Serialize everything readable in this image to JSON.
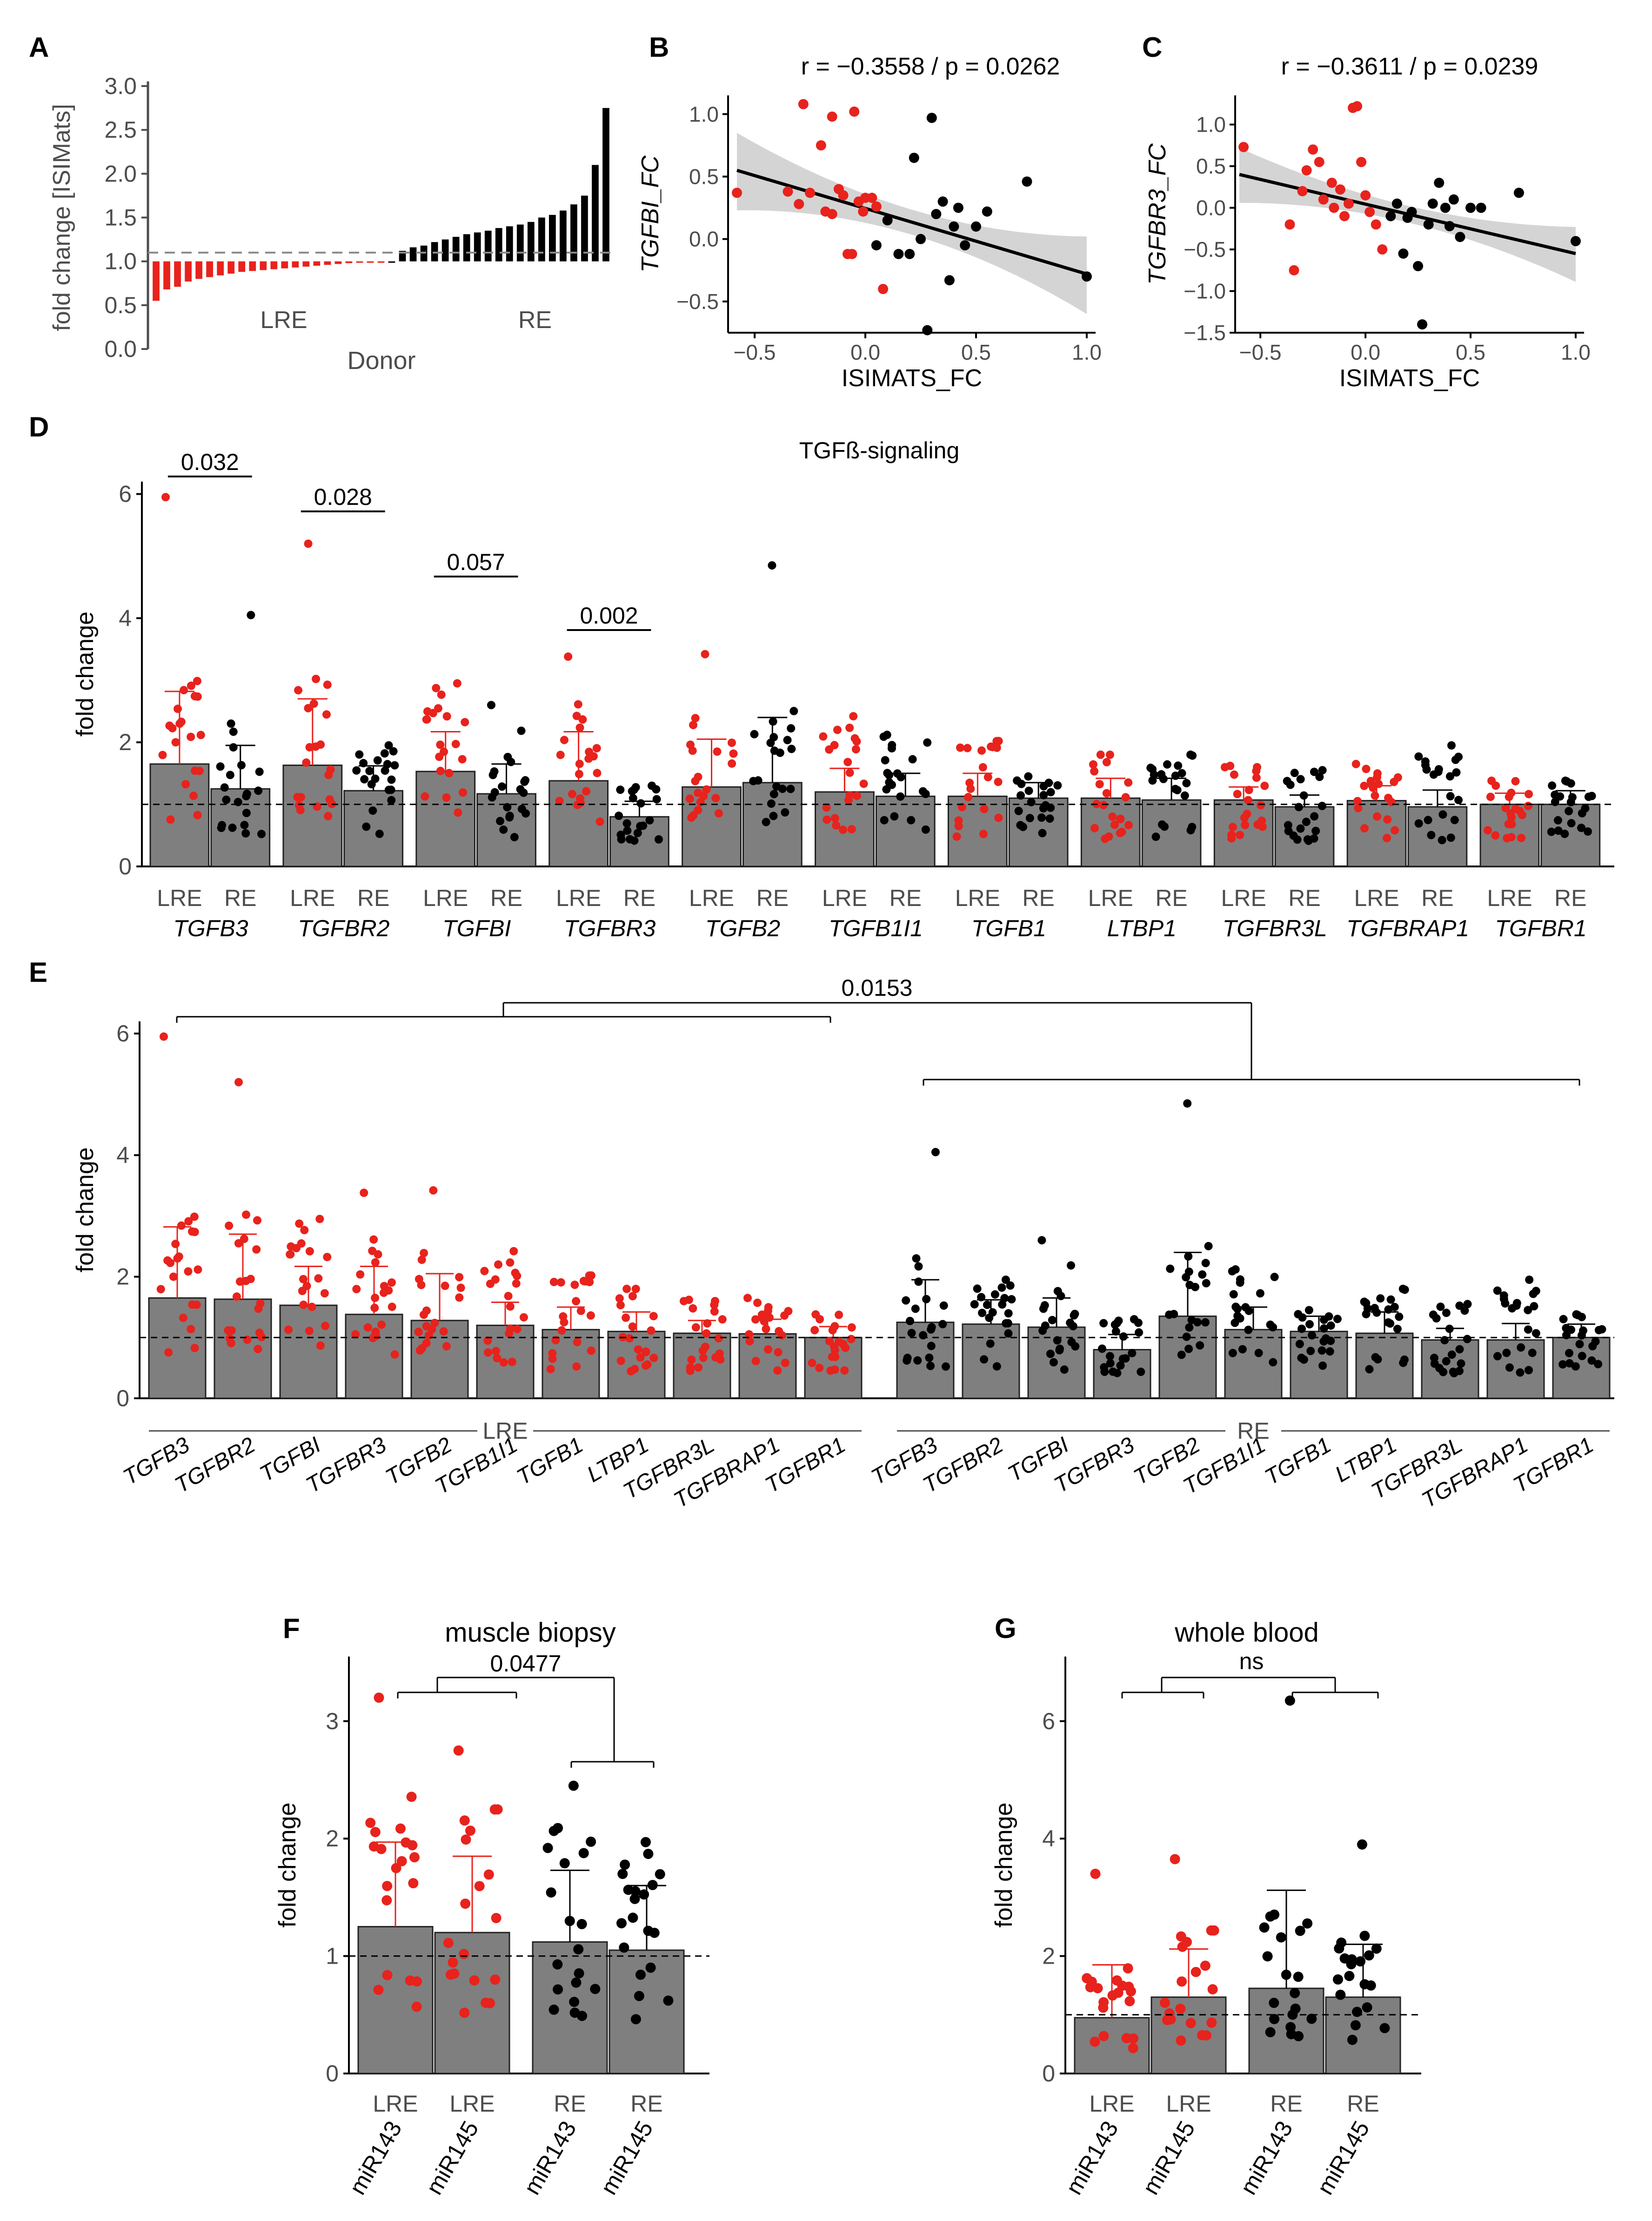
{
  "colors": {
    "lre": "#e8221c",
    "re": "#000000",
    "bar": "#7f7f7f",
    "ci": "#d4d4d4",
    "axis": "#4d4d4d"
  },
  "chart_data": [
    {
      "panel": "A",
      "type": "bar",
      "ylabel": "fold change [ISIMats]",
      "xlabel": "Donor",
      "group_labels": [
        "LRE",
        "RE"
      ],
      "yticks": [
        "0.0",
        "0.5",
        "1.0",
        "1.5",
        "2.0",
        "2.5",
        "3.0"
      ],
      "ylim": [
        0,
        3.0
      ],
      "reference_line": 1.1,
      "lre_values": [
        0.55,
        0.68,
        0.71,
        0.77,
        0.8,
        0.82,
        0.84,
        0.86,
        0.88,
        0.89,
        0.9,
        0.91,
        0.92,
        0.93,
        0.94,
        0.95,
        0.96,
        0.97,
        0.98,
        0.985,
        0.99,
        0.995
      ],
      "re_values": [
        1.0,
        1.12,
        1.16,
        1.18,
        1.22,
        1.25,
        1.28,
        1.31,
        1.33,
        1.35,
        1.38,
        1.4,
        1.42,
        1.45,
        1.5,
        1.53,
        1.58,
        1.65,
        1.75,
        2.1,
        2.75
      ]
    },
    {
      "panel": "B",
      "type": "scatter",
      "title": "r = −0.3558 / p = 0.0262",
      "ylabel": "TGFBI_FC",
      "xlabel": "ISIMATS_FC",
      "xticks": [
        "−0.5",
        "0.0",
        "0.5",
        "1.0"
      ],
      "yticks": [
        "−0.5",
        "0.0",
        "0.5",
        "1.0"
      ],
      "xlim": [
        -0.62,
        1.04
      ],
      "ylim": [
        -0.75,
        1.15
      ],
      "fit": {
        "x": [
          -0.58,
          1.0
        ],
        "y": [
          0.55,
          -0.28
        ]
      },
      "band_halfwidth_ends": [
        0.3,
        0.32
      ],
      "band_halfwidth_center": 0.1,
      "lre_points": [
        [
          -0.58,
          0.37
        ],
        [
          -0.35,
          0.38
        ],
        [
          -0.28,
          1.08
        ],
        [
          -0.25,
          0.37
        ],
        [
          -0.2,
          0.75
        ],
        [
          -0.18,
          0.22
        ],
        [
          -0.15,
          0.98
        ],
        [
          -0.12,
          0.4
        ],
        [
          -0.1,
          0.35
        ],
        [
          -0.08,
          -0.12
        ],
        [
          -0.06,
          -0.12
        ],
        [
          -0.05,
          1.02
        ],
        [
          -0.03,
          0.3
        ],
        [
          -0.01,
          0.22
        ],
        [
          0.0,
          0.33
        ],
        [
          0.03,
          0.33
        ],
        [
          0.05,
          0.26
        ],
        [
          0.08,
          -0.4
        ],
        [
          -0.15,
          0.2
        ],
        [
          -0.3,
          0.28
        ]
      ],
      "re_points": [
        [
          0.05,
          -0.05
        ],
        [
          0.1,
          0.15
        ],
        [
          0.15,
          -0.12
        ],
        [
          0.2,
          -0.12
        ],
        [
          0.22,
          0.65
        ],
        [
          0.25,
          0.0
        ],
        [
          0.28,
          -0.73
        ],
        [
          0.3,
          0.97
        ],
        [
          0.32,
          0.2
        ],
        [
          0.35,
          0.3
        ],
        [
          0.38,
          -0.33
        ],
        [
          0.4,
          0.1
        ],
        [
          0.42,
          0.25
        ],
        [
          0.45,
          -0.05
        ],
        [
          0.5,
          0.1
        ],
        [
          0.55,
          0.22
        ],
        [
          0.73,
          0.46
        ],
        [
          1.0,
          -0.3
        ]
      ]
    },
    {
      "panel": "C",
      "type": "scatter",
      "title": "r = −0.3611 / p = 0.0239",
      "ylabel": "TGFBR3_FC",
      "xlabel": "ISIMATS_FC",
      "xticks": [
        "−0.5",
        "0.0",
        "0.5",
        "1.0"
      ],
      "yticks": [
        "−1.5",
        "−1.0",
        "−0.5",
        "0.0",
        "0.5",
        "1.0"
      ],
      "xlim": [
        -0.62,
        1.04
      ],
      "ylim": [
        -1.5,
        1.35
      ],
      "fit": {
        "x": [
          -0.6,
          1.0
        ],
        "y": [
          0.4,
          -0.55
        ]
      },
      "band_halfwidth_ends": [
        0.32,
        0.34
      ],
      "band_halfwidth_center": 0.1,
      "lre_points": [
        [
          -0.58,
          0.73
        ],
        [
          -0.36,
          -0.2
        ],
        [
          -0.34,
          -0.75
        ],
        [
          -0.28,
          0.45
        ],
        [
          -0.25,
          0.7
        ],
        [
          -0.22,
          0.55
        ],
        [
          -0.2,
          0.1
        ],
        [
          -0.16,
          0.3
        ],
        [
          -0.12,
          0.22
        ],
        [
          -0.1,
          -0.1
        ],
        [
          -0.08,
          0.05
        ],
        [
          -0.06,
          1.2
        ],
        [
          -0.04,
          1.22
        ],
        [
          -0.02,
          0.55
        ],
        [
          0.0,
          0.15
        ],
        [
          0.02,
          -0.05
        ],
        [
          0.05,
          -0.2
        ],
        [
          0.08,
          -0.5
        ],
        [
          -0.15,
          0.0
        ],
        [
          -0.3,
          0.2
        ]
      ],
      "re_points": [
        [
          0.12,
          -0.1
        ],
        [
          0.15,
          0.05
        ],
        [
          0.18,
          -0.55
        ],
        [
          0.2,
          -0.12
        ],
        [
          0.22,
          -0.05
        ],
        [
          0.25,
          -0.7
        ],
        [
          0.27,
          -1.4
        ],
        [
          0.3,
          -0.2
        ],
        [
          0.32,
          0.05
        ],
        [
          0.35,
          0.3
        ],
        [
          0.38,
          0.0
        ],
        [
          0.4,
          -0.22
        ],
        [
          0.42,
          0.1
        ],
        [
          0.45,
          -0.35
        ],
        [
          0.5,
          0.0
        ],
        [
          0.55,
          0.0
        ],
        [
          0.73,
          0.18
        ],
        [
          1.0,
          -0.4
        ]
      ]
    },
    {
      "panel": "D",
      "type": "bar",
      "title": "TGFß-signaling",
      "ylabel": "fold change",
      "yticks": [
        "0",
        "2",
        "4",
        "6"
      ],
      "ylim": [
        0,
        6.2
      ],
      "reference_line": 1.0,
      "genes": [
        "TGFB3",
        "TGFBR2",
        "TGFBI",
        "TGFBR3",
        "TGFB2",
        "TGFB1I1",
        "TGFB1",
        "LTBP1",
        "TGFBR3L",
        "TGFBRAP1",
        "TGFBR1"
      ],
      "series": [
        {
          "name": "LRE",
          "means": [
            1.65,
            1.63,
            1.53,
            1.38,
            1.28,
            1.2,
            1.13,
            1.1,
            1.07,
            1.06,
            1.0
          ],
          "sd_upper": [
            2.82,
            2.7,
            2.17,
            2.17,
            2.05,
            1.58,
            1.5,
            1.42,
            1.28,
            1.3,
            1.18
          ]
        },
        {
          "name": "RE",
          "means": [
            1.25,
            1.22,
            1.17,
            0.8,
            1.35,
            1.13,
            1.1,
            1.07,
            0.96,
            0.96,
            1.0
          ],
          "sd_upper": [
            1.95,
            1.62,
            1.65,
            1.05,
            2.4,
            1.5,
            1.35,
            1.42,
            1.15,
            1.23,
            1.22
          ]
        }
      ],
      "lre_max_points": [
        5.95,
        5.2,
        2.95,
        3.38,
        3.42,
        2.42,
        2.02,
        1.8,
        1.62,
        1.65,
        1.38
      ],
      "re_max_points": [
        4.05,
        1.95,
        2.6,
        1.3,
        4.85,
        2.12,
        1.45,
        1.8,
        1.55,
        1.95,
        1.38
      ],
      "pvalues": [
        "0.032",
        "0.028",
        "0.057",
        "0.002"
      ],
      "pvalue_genes": [
        "TGFB3",
        "TGFBR2",
        "TGFBI",
        "TGFBR3"
      ],
      "group_labels": [
        "LRE",
        "RE"
      ]
    },
    {
      "panel": "E",
      "type": "bar",
      "ylabel": "fold change",
      "yticks": [
        "0",
        "2",
        "4",
        "6"
      ],
      "ylim": [
        0,
        6.2
      ],
      "reference_line": 1.0,
      "genes": [
        "TGFB3",
        "TGFBR2",
        "TGFBI",
        "TGFBR3",
        "TGFB2",
        "TGFB1I1",
        "TGFB1",
        "LTBP1",
        "TGFBR3L",
        "TGFBRAP1",
        "TGFBR1"
      ],
      "series": [
        {
          "name": "LRE",
          "means": [
            1.65,
            1.63,
            1.53,
            1.38,
            1.28,
            1.2,
            1.13,
            1.1,
            1.07,
            1.06,
            1.0
          ]
        },
        {
          "name": "RE",
          "means": [
            1.25,
            1.22,
            1.17,
            0.8,
            1.35,
            1.13,
            1.1,
            1.07,
            0.96,
            0.96,
            1.0
          ]
        }
      ],
      "pvalue": "0.0153",
      "group_labels": [
        "LRE",
        "RE"
      ]
    },
    {
      "panel": "F",
      "type": "bar",
      "title": "muscle biopsy",
      "ylabel": "fold change",
      "yticks": [
        "0",
        "1",
        "2",
        "3"
      ],
      "ylim": [
        0,
        3.55
      ],
      "reference_line": 1.0,
      "categories": [
        [
          "LRE",
          "miR143"
        ],
        [
          "LRE",
          "miR145"
        ],
        [
          "RE",
          "miR143"
        ],
        [
          "RE",
          "miR145"
        ]
      ],
      "values": [
        1.25,
        1.2,
        1.12,
        1.05
      ],
      "sd_upper": [
        1.97,
        1.85,
        1.73,
        1.6
      ],
      "max_points": [
        3.2,
        2.75,
        2.45,
        1.97
      ],
      "pvalue": "0.0477"
    },
    {
      "panel": "G",
      "type": "bar",
      "title": "whole blood",
      "ylabel": "fold change",
      "yticks": [
        "0",
        "2",
        "4",
        "6"
      ],
      "ylim": [
        0,
        7.1
      ],
      "reference_line": 1.0,
      "categories": [
        [
          "LRE",
          "miR143"
        ],
        [
          "LRE",
          "miR145"
        ],
        [
          "RE",
          "miR143"
        ],
        [
          "RE",
          "miR145"
        ]
      ],
      "values": [
        0.95,
        1.3,
        1.45,
        1.3
      ],
      "sd_upper": [
        1.85,
        2.12,
        3.12,
        2.2
      ],
      "max_points": [
        3.4,
        3.65,
        6.35,
        3.9
      ],
      "pvalue": "ns"
    }
  ]
}
